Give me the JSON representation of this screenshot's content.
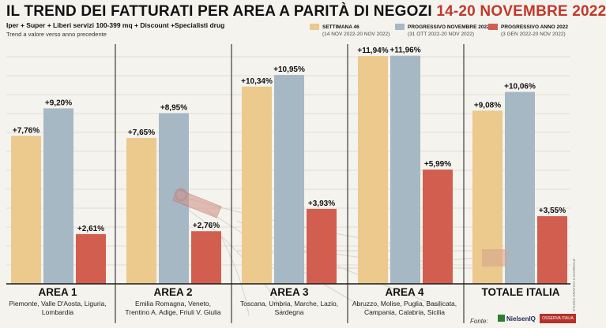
{
  "title": "IL TREND DEI FATTURATI PER AREA A PARITÀ DI NEGOZI",
  "title_highlight": "14-20 NOVEMBRE 2022",
  "subtitle": "Iper + Super + Liberi servizi 100-399 mq + Discount +Specialisti drug",
  "note": "Trend a valore verso anno precedente",
  "legend": [
    {
      "name": "SETTIMANA 46",
      "sub": "(14 NOV 2022-20 NOV 2022)",
      "color": "#ecc98c"
    },
    {
      "name": "PROGRESSIVO NOVEMBRE 2022",
      "sub": "(31 OTT 2022-20 NOV 2022)",
      "color": "#a7b8c5"
    },
    {
      "name": "PROGRESSIVO ANNO 2022",
      "sub": "(3 GEN 2022-20 NOV 2022)",
      "color": "#d25e50"
    }
  ],
  "chart_data": {
    "type": "bar",
    "categories": [
      "AREA 1",
      "AREA 2",
      "AREA 3",
      "AREA 4",
      "TOTALE ITALIA"
    ],
    "category_details": [
      "Piemonte, Valle D'Aosta, Liguria, Lombardia",
      "Emilia Romagna, Veneto, Trentino A. Adige, Friuli V. Giulia",
      "Toscana, Umbria, Marche, Lazio, Sardegna",
      "Abruzzo, Molise, Puglia, Basilicata, Campania, Calabria, Sicilia",
      ""
    ],
    "series": [
      {
        "name": "SETTIMANA 46",
        "values": [
          7.76,
          7.65,
          10.34,
          11.94,
          9.08
        ],
        "labels": [
          "+7,76%",
          "+7,65%",
          "+10,34%",
          "+11,94%",
          "+9,08%"
        ],
        "color": "#ecc98c"
      },
      {
        "name": "PROGRESSIVO NOVEMBRE 2022",
        "values": [
          9.2,
          8.95,
          10.95,
          11.96,
          10.06
        ],
        "labels": [
          "+9,20%",
          "+8,95%",
          "+10,95%",
          "+11,96%",
          "+10,06%"
        ],
        "color": "#a7b8c5"
      },
      {
        "name": "PROGRESSIVO ANNO 2022",
        "values": [
          2.61,
          2.76,
          3.93,
          5.99,
          3.55
        ],
        "labels": [
          "+2,61%",
          "+2,76%",
          "+3,93%",
          "+5,99%",
          "+3,55%"
        ],
        "color": "#d25e50"
      }
    ],
    "ylim": [
      0,
      12.4
    ],
    "grid": true
  },
  "credit": "STUDIO GRAFICO ILGIORNALE",
  "source_label": "Fonte:",
  "source_logos": [
    "NielsenIQ",
    "OSSERVA ITALIA"
  ]
}
